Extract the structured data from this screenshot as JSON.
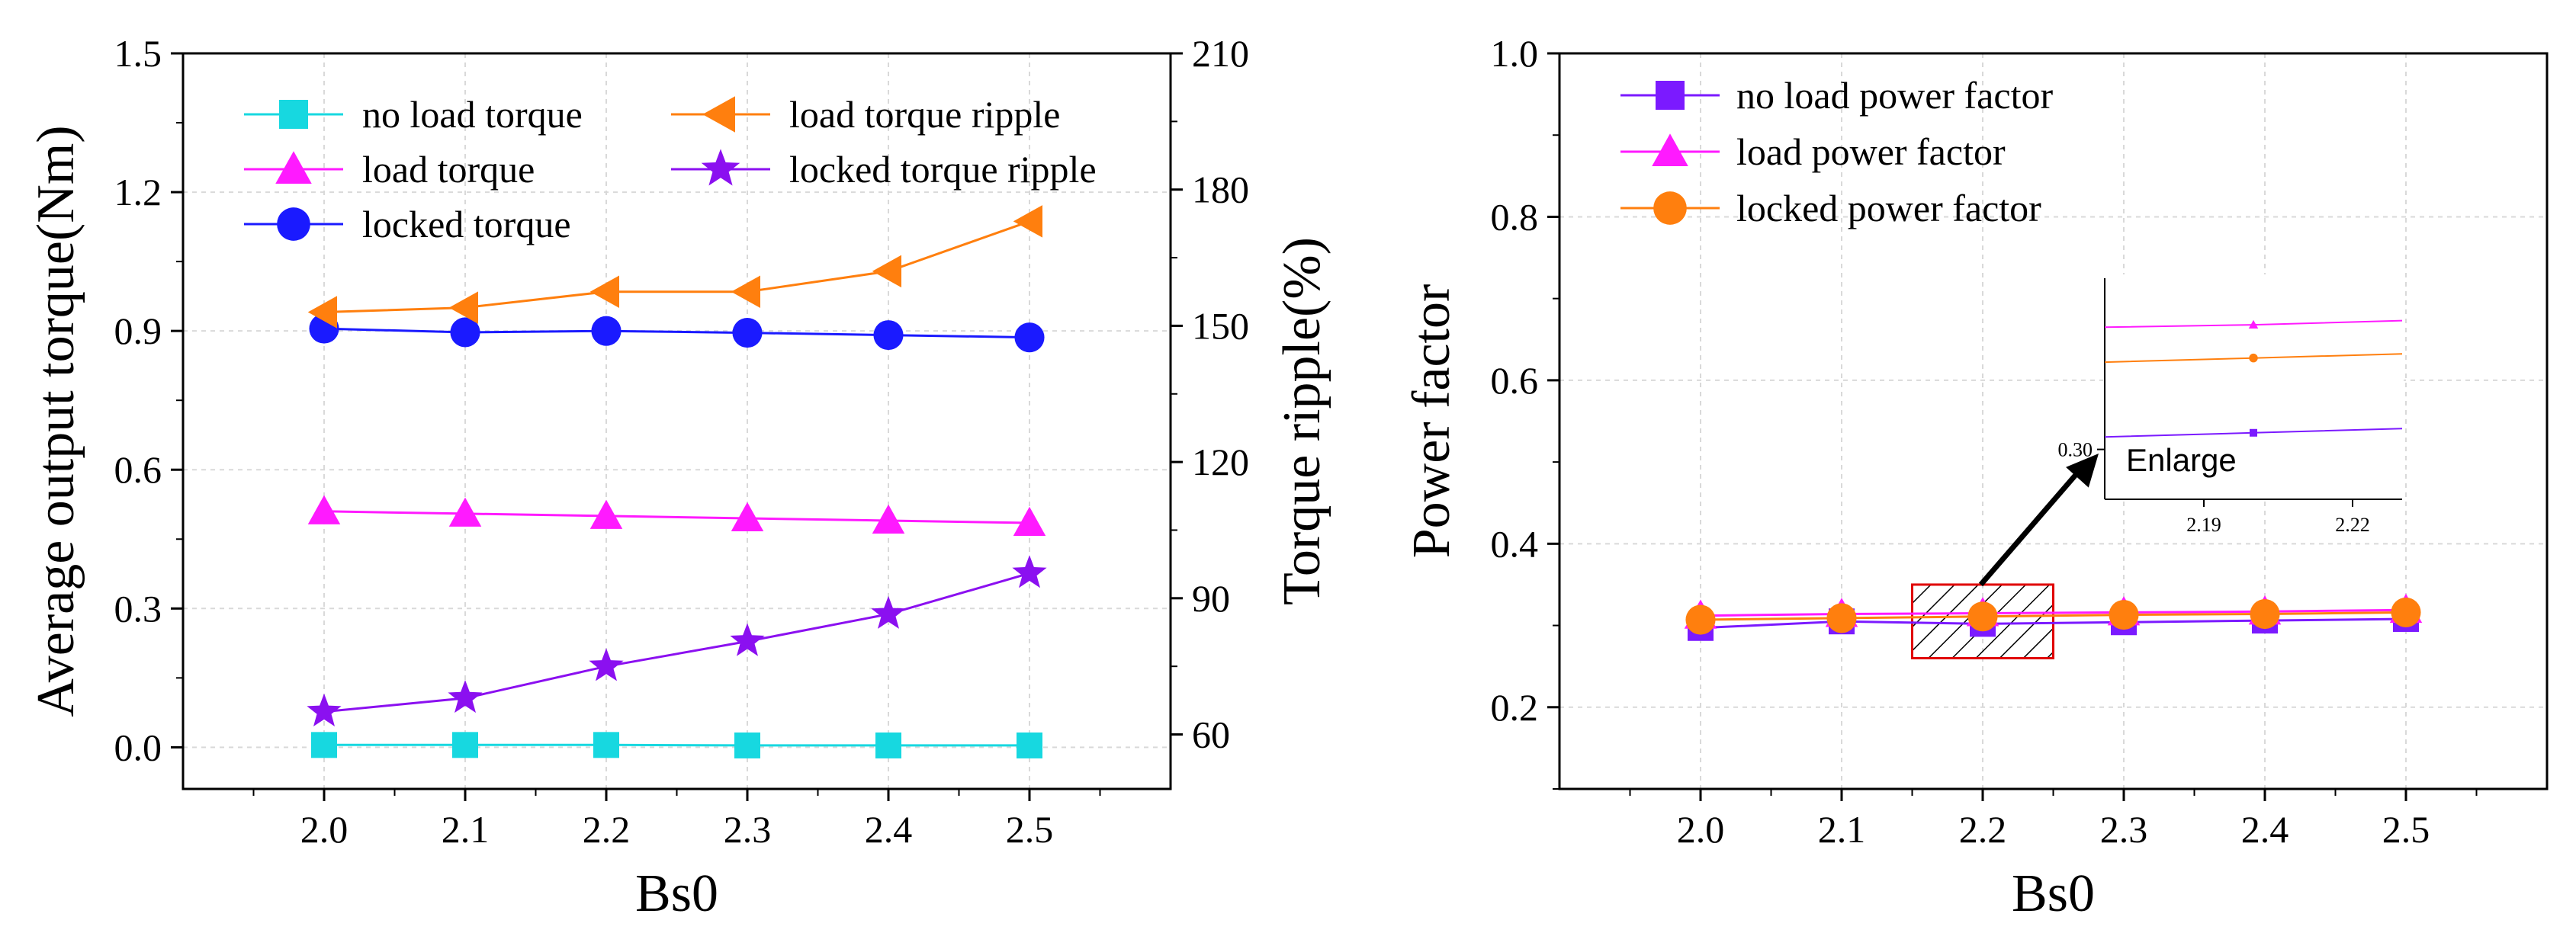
{
  "chart_data": [
    {
      "type": "line",
      "title": "",
      "xlabel": "Bs0",
      "ylabel": "Average output torque(Nm)",
      "y2label": "Torque ripple(%)",
      "x": [
        2.0,
        2.1,
        2.2,
        2.3,
        2.4,
        2.5
      ],
      "xlim": [
        1.9,
        2.6
      ],
      "ylim": [
        -0.09,
        1.5
      ],
      "y2lim": [
        48,
        210
      ],
      "xticks": [
        "2.0",
        "2.1",
        "2.2",
        "2.3",
        "2.4",
        "2.5"
      ],
      "yticks": [
        "0.0",
        "0.3",
        "0.6",
        "0.9",
        "1.2",
        "1.5"
      ],
      "y2ticks": [
        "60",
        "90",
        "120",
        "150",
        "180",
        "210"
      ],
      "grid": true,
      "legend_position": "top",
      "series": [
        {
          "name": "no load torque",
          "axis": "left",
          "marker": "square",
          "color": "#17d8e0",
          "values": [
            0.005,
            0.005,
            0.005,
            0.004,
            0.004,
            0.004
          ]
        },
        {
          "name": "load torque",
          "axis": "left",
          "marker": "triangle-up",
          "color": "#ff1aff",
          "values": [
            0.51,
            0.505,
            0.5,
            0.495,
            0.49,
            0.485
          ]
        },
        {
          "name": "locked torque",
          "axis": "left",
          "marker": "circle",
          "color": "#1a1aff",
          "values": [
            0.905,
            0.897,
            0.9,
            0.896,
            0.891,
            0.886
          ]
        },
        {
          "name": "load torque ripple",
          "axis": "right",
          "marker": "triangle-left",
          "color": "#ff7f0e",
          "values": [
            153,
            154,
            157.5,
            157.5,
            162,
            173
          ]
        },
        {
          "name": "locked torque ripple",
          "axis": "right",
          "marker": "star",
          "color": "#8b10f0",
          "values": [
            65,
            68,
            75,
            80.5,
            86.5,
            95.5
          ]
        }
      ],
      "legend": [
        {
          "label": "no load torque",
          "color": "#17d8e0",
          "marker": "square"
        },
        {
          "label": "load torque ripple",
          "color": "#ff7f0e",
          "marker": "triangle-left"
        },
        {
          "label": "load torque",
          "color": "#ff1aff",
          "marker": "triangle-up"
        },
        {
          "label": "locked torque ripple",
          "color": "#8b10f0",
          "marker": "star"
        },
        {
          "label": "locked torque",
          "color": "#1a1aff",
          "marker": "circle"
        }
      ]
    },
    {
      "type": "line",
      "title": "",
      "xlabel": "Bs0",
      "ylabel": "Power factor",
      "x": [
        2.0,
        2.1,
        2.2,
        2.3,
        2.4,
        2.5
      ],
      "xlim": [
        1.9,
        2.6
      ],
      "ylim": [
        0.1,
        1.0
      ],
      "xticks": [
        "2.0",
        "2.1",
        "2.2",
        "2.3",
        "2.4",
        "2.5"
      ],
      "yticks": [
        "0.2",
        "0.4",
        "0.6",
        "0.8",
        "1.0"
      ],
      "grid": true,
      "legend_position": "top-left",
      "series": [
        {
          "name": "no load power factor",
          "marker": "square",
          "color": "#7b1aff",
          "values": [
            0.297,
            0.305,
            0.302,
            0.304,
            0.306,
            0.308
          ]
        },
        {
          "name": "load power factor",
          "marker": "triangle-up",
          "color": "#ff1aff",
          "values": [
            0.312,
            0.314,
            0.315,
            0.316,
            0.317,
            0.319
          ]
        },
        {
          "name": "locked power factor",
          "marker": "circle",
          "color": "#ff7f0e",
          "values": [
            0.307,
            0.309,
            0.311,
            0.313,
            0.314,
            0.316
          ]
        }
      ],
      "highlight_box": {
        "x_range": [
          2.15,
          2.25
        ],
        "y_range": [
          0.26,
          0.35
        ]
      },
      "inset": {
        "label": "Enlarge",
        "xlim": [
          2.17,
          2.23
        ],
        "ylim": [
          0.294,
          0.3206
        ],
        "xticks": [
          "2.19",
          "2.22"
        ],
        "ytick": "0.30",
        "x": [
          2.17,
          2.2,
          2.23
        ],
        "series": [
          {
            "name": "no load power factor",
            "values": [
              0.3015,
              0.302,
              0.3025
            ]
          },
          {
            "name": "load power factor",
            "values": [
              0.3147,
              0.315,
              0.3155
            ]
          },
          {
            "name": "locked power factor",
            "values": [
              0.3105,
              0.311,
              0.3115
            ]
          }
        ]
      }
    }
  ]
}
